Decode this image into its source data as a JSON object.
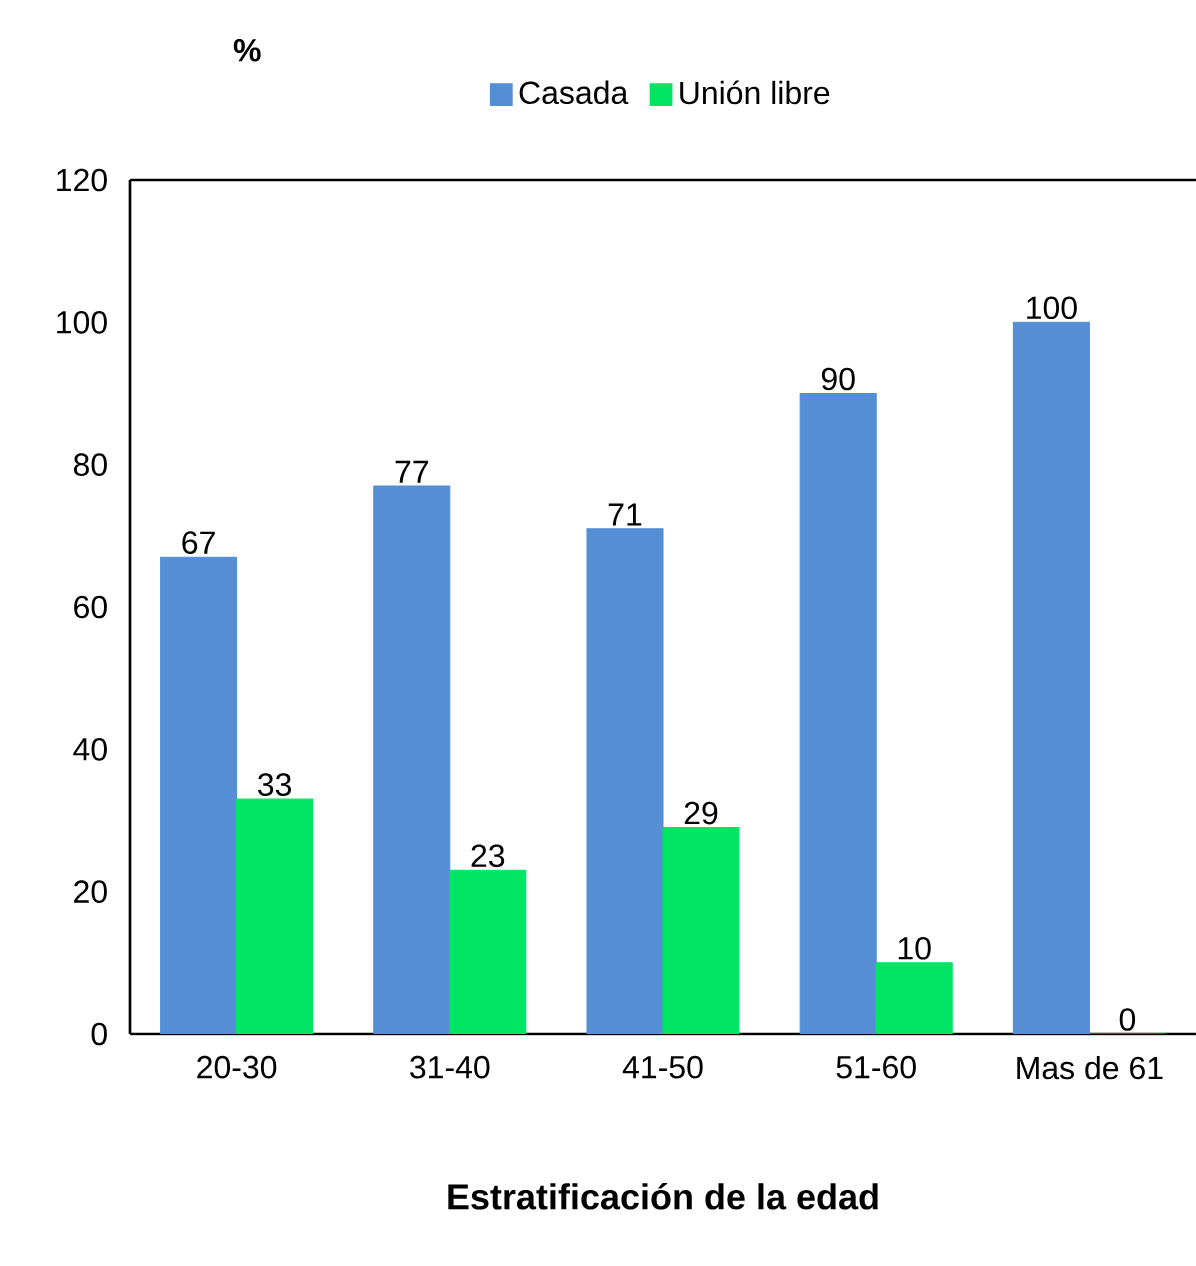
{
  "chart_data": {
    "type": "bar",
    "ylabel": "%",
    "xlabel": "Estratificación de la edad",
    "categories": [
      "20-30",
      "31-40",
      "41-50",
      "51-60",
      "Mas de 61"
    ],
    "series": [
      {
        "name": "Casada",
        "color": "#558ed5",
        "values": [
          67,
          77,
          71,
          90,
          100
        ]
      },
      {
        "name": "Unión libre",
        "color": "#00e664",
        "values": [
          33,
          23,
          29,
          10,
          0
        ]
      }
    ],
    "ylim": [
      0,
      120
    ],
    "yticks": [
      0,
      20,
      40,
      60,
      80,
      100,
      120
    ],
    "data_labels": true,
    "legend": "top",
    "grid": false
  }
}
